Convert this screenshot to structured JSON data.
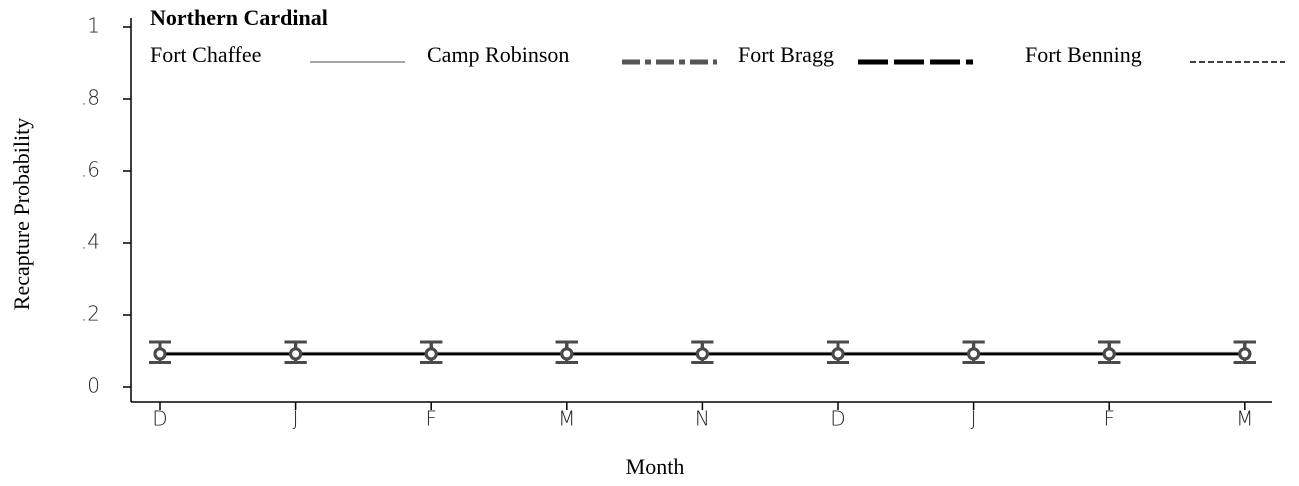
{
  "chart_data": {
    "type": "line",
    "title": "Northern Cardinal",
    "ylabel": "Recapture Probability",
    "xlabel": "Month",
    "categories": [
      "D",
      "J",
      "F",
      "M",
      "N",
      "D",
      "J",
      "F",
      "M"
    ],
    "series": [
      {
        "name": "Fort Chaffee",
        "color": "#8a8a8a",
        "values": [
          0.092,
          0.092,
          0.092,
          0.092,
          0.092,
          0.092,
          0.092,
          0.092,
          0.092
        ],
        "lower": [
          0.068,
          0.068,
          0.068,
          0.068,
          0.068,
          0.068,
          0.068,
          0.068,
          0.068
        ],
        "upper": [
          0.125,
          0.125,
          0.125,
          0.125,
          0.125,
          0.125,
          0.125,
          0.125,
          0.125
        ]
      },
      {
        "name": "Camp Robinson",
        "color": "#555555",
        "values": [
          0.092,
          0.092,
          0.092,
          0.092,
          0.092,
          0.092,
          0.092,
          0.092,
          0.092
        ],
        "lower": [
          0.068,
          0.068,
          0.068,
          0.068,
          0.068,
          0.068,
          0.068,
          0.068,
          0.068
        ],
        "upper": [
          0.125,
          0.125,
          0.125,
          0.125,
          0.125,
          0.125,
          0.125,
          0.125,
          0.125
        ]
      },
      {
        "name": "Fort Bragg",
        "color": "#000000",
        "values": [
          0.092,
          0.092,
          0.092,
          0.092,
          0.092,
          0.092,
          0.092,
          0.092,
          0.092
        ],
        "lower": [
          0.068,
          0.068,
          0.068,
          0.068,
          0.068,
          0.068,
          0.068,
          0.068,
          0.068
        ],
        "upper": [
          0.125,
          0.125,
          0.125,
          0.125,
          0.125,
          0.125,
          0.125,
          0.125,
          0.125
        ]
      },
      {
        "name": "Fort Benning",
        "color": "#000000",
        "values": [
          0.092,
          0.092,
          0.092,
          0.092,
          0.092,
          0.092,
          0.092,
          0.092,
          0.092
        ],
        "lower": [
          0.068,
          0.068,
          0.068,
          0.068,
          0.068,
          0.068,
          0.068,
          0.068,
          0.068
        ],
        "upper": [
          0.125,
          0.125,
          0.125,
          0.125,
          0.125,
          0.125,
          0.125,
          0.125,
          0.125
        ]
      }
    ],
    "ylim": [
      0,
      1
    ],
    "yticks": [
      0,
      {
        "value": 0.2,
        "label": ".2"
      },
      {
        "value": 0.4,
        "label": ".4"
      },
      {
        "value": 0.6,
        "label": ".6"
      },
      {
        "value": 0.8,
        "label": ".8"
      },
      1
    ],
    "grid": false
  }
}
